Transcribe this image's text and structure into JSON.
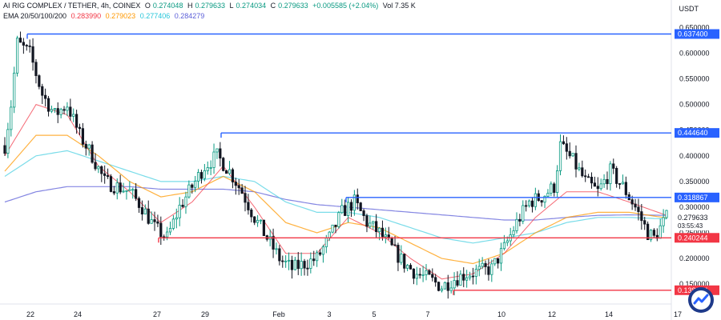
{
  "header": {
    "symbol": "AI RIG COMPLEX / TETHER, 4h, COINEX",
    "o_label": "O",
    "o": "0.274048",
    "h_label": "H",
    "h": "0.279633",
    "l_label": "L",
    "l": "0.274034",
    "c_label": "C",
    "c": "0.279633",
    "change": "+0.005585 (+2.04%)",
    "volume": "Vol 7.35 K",
    "ema_label": "EMA 20/50/100/200",
    "ema20": "0.283990",
    "ema50": "0.279023",
    "ema100": "0.277406",
    "ema200": "0.284279"
  },
  "currency": "USDT",
  "colors": {
    "up": "#089981",
    "down": "#131722",
    "blue_level": "#2962ff",
    "red_level": "#f23645",
    "ema20": "#f23645",
    "ema50": "#ff9800",
    "ema100": "#4dd0e1",
    "ema200": "#5b5ed8"
  },
  "chart_data": {
    "type": "candlestick",
    "ylim": [
      0.13,
      0.66
    ],
    "y_ticks": [
      "0.650000",
      "0.600000",
      "0.550000",
      "0.500000",
      "0.450000",
      "0.400000",
      "0.350000",
      "0.300000",
      "0.250000",
      "0.200000",
      "0.150000"
    ],
    "x_ticks": [
      "22",
      "24",
      "27",
      "29",
      "Feb",
      "3",
      "5",
      "7",
      "10",
      "12",
      "14",
      "17"
    ],
    "price_levels": [
      {
        "label": "0.637400",
        "value": 0.6374,
        "color": "blue"
      },
      {
        "label": "0.444640",
        "value": 0.44464,
        "color": "blue"
      },
      {
        "label": "0.318867",
        "value": 0.318867,
        "color": "blue"
      },
      {
        "label": "0.240244",
        "value": 0.240244,
        "color": "red"
      },
      {
        "label": "0.138124",
        "value": 0.138124,
        "color": "red"
      }
    ],
    "last_price": "0.279633",
    "countdown": "03:55:43",
    "anchors": [
      [
        0,
        0.42
      ],
      [
        2,
        0.5
      ],
      [
        4,
        0.62
      ],
      [
        8,
        0.6
      ],
      [
        12,
        0.52
      ],
      [
        16,
        0.48
      ],
      [
        20,
        0.5
      ],
      [
        24,
        0.44
      ],
      [
        28,
        0.4
      ],
      [
        32,
        0.35
      ],
      [
        36,
        0.34
      ],
      [
        40,
        0.33
      ],
      [
        44,
        0.3
      ],
      [
        48,
        0.26
      ],
      [
        52,
        0.24
      ],
      [
        56,
        0.3
      ],
      [
        60,
        0.34
      ],
      [
        64,
        0.38
      ],
      [
        68,
        0.4
      ],
      [
        72,
        0.37
      ],
      [
        76,
        0.33
      ],
      [
        80,
        0.28
      ],
      [
        84,
        0.24
      ],
      [
        88,
        0.2
      ],
      [
        92,
        0.18
      ],
      [
        96,
        0.19
      ],
      [
        100,
        0.2
      ],
      [
        104,
        0.24
      ],
      [
        108,
        0.29
      ],
      [
        112,
        0.31
      ],
      [
        116,
        0.27
      ],
      [
        120,
        0.25
      ],
      [
        124,
        0.22
      ],
      [
        128,
        0.19
      ],
      [
        132,
        0.17
      ],
      [
        136,
        0.16
      ],
      [
        140,
        0.145
      ],
      [
        144,
        0.16
      ],
      [
        148,
        0.17
      ],
      [
        152,
        0.175
      ],
      [
        156,
        0.18
      ],
      [
        160,
        0.22
      ],
      [
        164,
        0.27
      ],
      [
        168,
        0.31
      ],
      [
        172,
        0.32
      ],
      [
        176,
        0.34
      ],
      [
        178,
        0.42
      ],
      [
        182,
        0.39
      ],
      [
        186,
        0.35
      ],
      [
        190,
        0.33
      ],
      [
        194,
        0.37
      ],
      [
        198,
        0.34
      ],
      [
        202,
        0.3
      ],
      [
        206,
        0.25
      ],
      [
        208,
        0.24
      ],
      [
        210,
        0.26
      ],
      [
        212,
        0.28
      ]
    ],
    "ema20": [
      [
        0,
        0.4
      ],
      [
        10,
        0.5
      ],
      [
        20,
        0.48
      ],
      [
        30,
        0.38
      ],
      [
        40,
        0.33
      ],
      [
        50,
        0.27
      ],
      [
        60,
        0.31
      ],
      [
        70,
        0.38
      ],
      [
        80,
        0.3
      ],
      [
        90,
        0.21
      ],
      [
        100,
        0.21
      ],
      [
        110,
        0.28
      ],
      [
        120,
        0.25
      ],
      [
        130,
        0.2
      ],
      [
        140,
        0.16
      ],
      [
        150,
        0.17
      ],
      [
        160,
        0.21
      ],
      [
        170,
        0.28
      ],
      [
        180,
        0.33
      ],
      [
        190,
        0.33
      ],
      [
        200,
        0.31
      ],
      [
        212,
        0.284
      ]
    ],
    "ema50": [
      [
        0,
        0.37
      ],
      [
        10,
        0.44
      ],
      [
        20,
        0.44
      ],
      [
        30,
        0.4
      ],
      [
        40,
        0.35
      ],
      [
        50,
        0.32
      ],
      [
        60,
        0.33
      ],
      [
        70,
        0.36
      ],
      [
        80,
        0.33
      ],
      [
        90,
        0.27
      ],
      [
        100,
        0.25
      ],
      [
        110,
        0.27
      ],
      [
        120,
        0.26
      ],
      [
        130,
        0.23
      ],
      [
        140,
        0.2
      ],
      [
        150,
        0.19
      ],
      [
        160,
        0.21
      ],
      [
        170,
        0.25
      ],
      [
        180,
        0.28
      ],
      [
        190,
        0.29
      ],
      [
        200,
        0.29
      ],
      [
        212,
        0.279
      ]
    ],
    "ema100": [
      [
        0,
        0.36
      ],
      [
        10,
        0.4
      ],
      [
        20,
        0.41
      ],
      [
        30,
        0.39
      ],
      [
        40,
        0.37
      ],
      [
        50,
        0.35
      ],
      [
        60,
        0.35
      ],
      [
        70,
        0.36
      ],
      [
        80,
        0.35
      ],
      [
        90,
        0.31
      ],
      [
        100,
        0.29
      ],
      [
        110,
        0.29
      ],
      [
        120,
        0.28
      ],
      [
        130,
        0.26
      ],
      [
        140,
        0.24
      ],
      [
        150,
        0.23
      ],
      [
        160,
        0.24
      ],
      [
        170,
        0.25
      ],
      [
        180,
        0.27
      ],
      [
        190,
        0.28
      ],
      [
        200,
        0.28
      ],
      [
        212,
        0.277
      ]
    ],
    "ema200": [
      [
        0,
        0.31
      ],
      [
        10,
        0.33
      ],
      [
        20,
        0.34
      ],
      [
        30,
        0.34
      ],
      [
        40,
        0.34
      ],
      [
        50,
        0.335
      ],
      [
        60,
        0.335
      ],
      [
        70,
        0.335
      ],
      [
        80,
        0.33
      ],
      [
        90,
        0.315
      ],
      [
        100,
        0.305
      ],
      [
        110,
        0.3
      ],
      [
        120,
        0.295
      ],
      [
        130,
        0.29
      ],
      [
        140,
        0.285
      ],
      [
        150,
        0.28
      ],
      [
        160,
        0.275
      ],
      [
        170,
        0.275
      ],
      [
        180,
        0.28
      ],
      [
        190,
        0.284
      ],
      [
        200,
        0.285
      ],
      [
        212,
        0.284
      ]
    ]
  }
}
